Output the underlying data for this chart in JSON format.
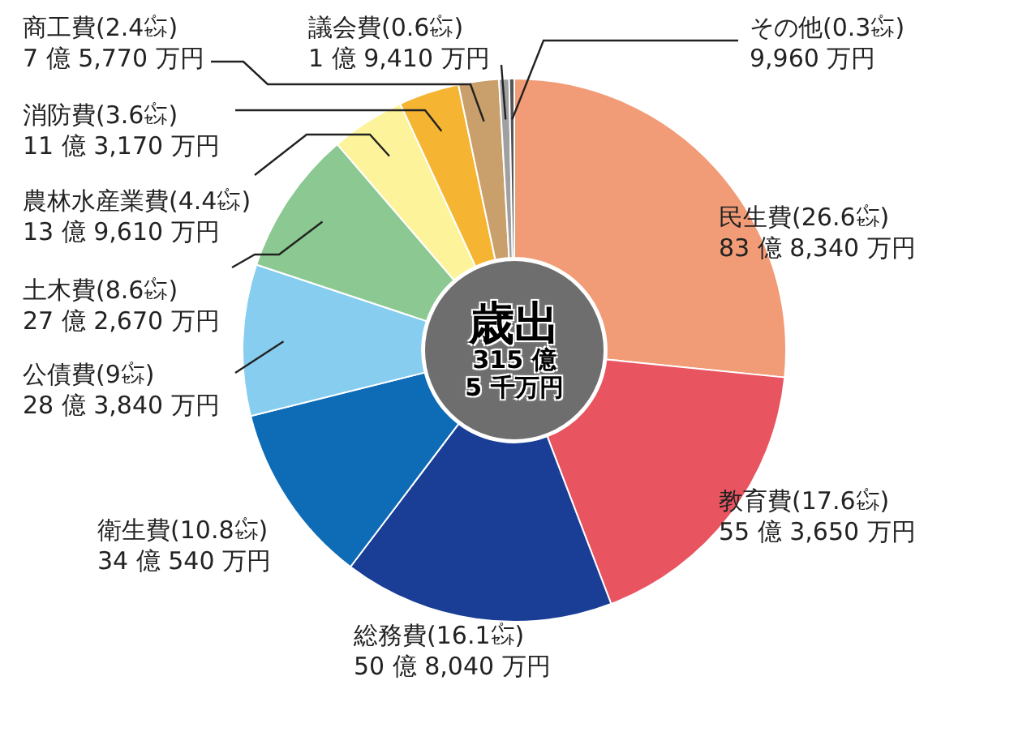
{
  "chart_data": {
    "type": "donut",
    "title": "歳出",
    "subtitle": "315 億\n5 千万円",
    "categories": [
      "民生費",
      "教育費",
      "総務費",
      "衛生費",
      "公債費",
      "土木費",
      "農林水産業費",
      "消防費",
      "商工費",
      "議会費",
      "その他"
    ],
    "values": [
      26.6,
      17.6,
      16.1,
      10.8,
      9,
      8.6,
      4.4,
      3.6,
      2.4,
      0.6,
      0.3
    ],
    "value_labels": [
      "(26.6㌫)\n83 億 8,340 万円",
      "(17.6㌫)\n55 億 3,650 万円",
      "(16.1㌫)\n50 億 8,040 万円",
      "(10.8㌫)\n34 億 540 万円",
      "(9㌫)\n28 億 3,840 万円",
      "(8.6㌫)\n27 億 2,670 万円",
      "(4.4㌫)\n13 億 9,610 万円",
      "(3.6㌫)\n11 億 3,170 万円",
      "(2.4㌫)\n7 億 5,770 万円",
      "(0.6㌫)\n1 億 9,410 万円",
      "(0.3㌫)\n9,960 万円"
    ],
    "colors": [
      "#f29c77",
      "#e85460",
      "#1a3e96",
      "#0e6bb5",
      "#86cdf0",
      "#8cc891",
      "#fdf39b",
      "#f5b533",
      "#c9a06b",
      "#a0a0a0",
      "#555555"
    ],
    "legend": false
  }
}
